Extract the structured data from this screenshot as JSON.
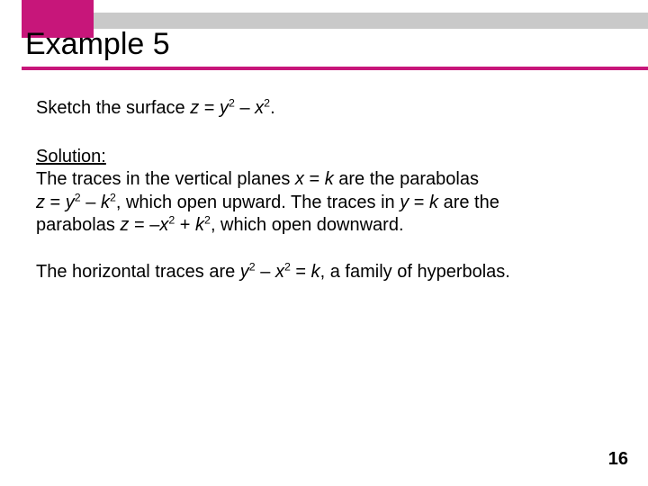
{
  "colors": {
    "accent": "#c7167a",
    "gray_bar": "#c9c9c9",
    "text": "#000000",
    "background": "#ffffff"
  },
  "header": {
    "title": "Example 5"
  },
  "body": {
    "problem_prefix": "Sketch the surface ",
    "eq_z": "z",
    "eq_equals": " = ",
    "eq_y": "y",
    "eq_minus": " – ",
    "eq_x": "x",
    "eq_period": ".",
    "exp2": "2",
    "solution_label": "Solution:",
    "p1_l1a": "The traces in the vertical planes ",
    "p1_l1b": " = ",
    "p1_l1c": " are the parabolas",
    "var_x": "x",
    "var_k": "k",
    "var_y": "y",
    "var_z": "z",
    "p1_l2a": " = ",
    "p1_l2b": " – ",
    "p1_l2c": ", which open upward. The traces in ",
    "p1_l2d": " = ",
    "p1_l2e": " are the",
    "p1_l3a": "parabolas ",
    "p1_l3b": " = –",
    "p1_l3c": " + ",
    "p1_l3d": ", which open downward.",
    "p2_a": "The horizontal traces are ",
    "p2_b": " – ",
    "p2_c": " = ",
    "p2_d": ", a family of hyperbolas."
  },
  "page_number": "16"
}
